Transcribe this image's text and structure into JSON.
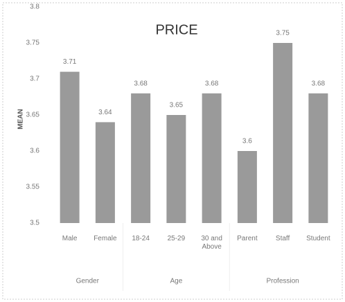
{
  "chart_data": {
    "type": "bar",
    "title": "PRICE",
    "y_label": "MEAN",
    "categories": [
      "Male",
      "Female",
      "18-24",
      "25-29",
      "30 and Above",
      "Parent",
      "Staff",
      "Student"
    ],
    "groups": [
      "Gender",
      "Age",
      "Profession"
    ],
    "values": [
      3.71,
      3.64,
      3.68,
      3.65,
      3.68,
      3.6,
      3.75,
      3.68
    ],
    "color": "#9a9a9a",
    "ylim": [
      3.5,
      3.8
    ],
    "yticks": [
      3.5,
      3.55,
      3.6,
      3.65,
      3.7,
      3.75,
      3.8
    ],
    "grid": false
  }
}
